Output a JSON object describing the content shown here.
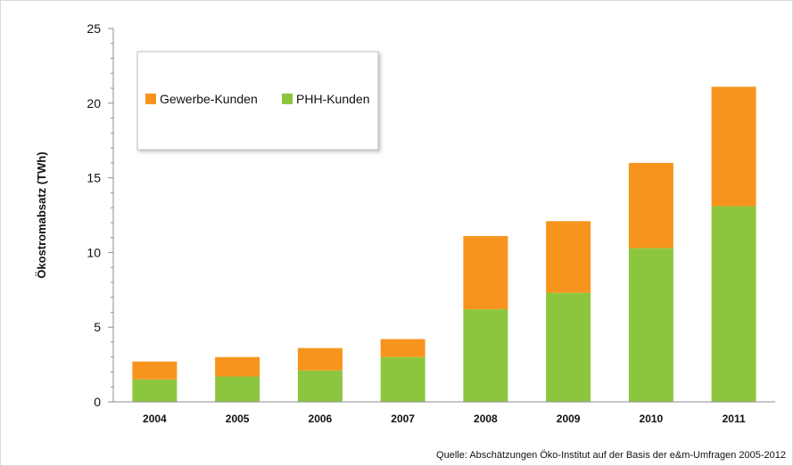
{
  "chart_data": {
    "type": "bar",
    "stacked": true,
    "title": "",
    "xlabel": "",
    "ylabel": "Ökostromabsatz (TWh)",
    "ylim": [
      0,
      25
    ],
    "yticks": [
      0,
      5,
      10,
      15,
      20,
      25
    ],
    "grid": false,
    "legend_placement": "top-left",
    "categories": [
      "2004",
      "2005",
      "2006",
      "2007",
      "2008",
      "2009",
      "2010",
      "2011"
    ],
    "series": [
      {
        "name": "PHH-Kunden",
        "color": "#8cc63f",
        "values": [
          1.5,
          1.7,
          2.1,
          3.0,
          6.2,
          7.3,
          10.3,
          13.1
        ]
      },
      {
        "name": "Gewerbe-Kunden",
        "color": "#f7941d",
        "values": [
          1.2,
          1.3,
          1.5,
          1.2,
          4.9,
          4.8,
          5.7,
          8.0
        ]
      }
    ],
    "legend_order": [
      "Gewerbe-Kunden",
      "PHH-Kunden"
    ],
    "source": "Quelle: Abschätzungen Öko-Institut auf der Basis der e&m-Umfragen 2005-2012"
  }
}
